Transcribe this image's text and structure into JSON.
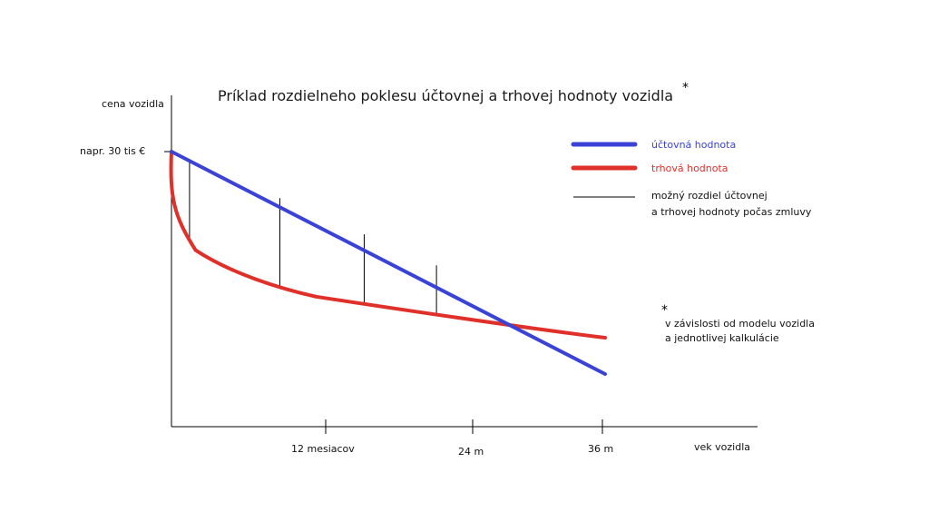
{
  "title": "Príklad rozdielneho poklesu účtovnej a trhovej hodnoty vozidla",
  "title_star": "*",
  "y_axis_label": "cena vozidla",
  "y_tick_label": "napr. 30 tis €",
  "x_axis_label": "vek vozidla",
  "x_ticks": [
    "12 mesiacov",
    "24 m",
    "36 m"
  ],
  "legend": {
    "blue": "účtovná hodnota",
    "red": "trhová hodnota",
    "diff_line1": "možný rozdiel účtovnej",
    "diff_line2": "a trhovej hodnoty počas zmluvy"
  },
  "note": {
    "star": "*",
    "line1": "v závislosti od modelu vozidla",
    "line2": "a jednotlivej kalkulácie"
  },
  "colors": {
    "accounting": "#3a43d6",
    "market": "#e0302a",
    "axis": "#000000"
  },
  "chart_data": {
    "type": "line",
    "x_unit": "months",
    "xlim": [
      0,
      36
    ],
    "y_start": 30,
    "y_unit": "tis €",
    "series": [
      {
        "name": "účtovná hodnota",
        "x": [
          0,
          36
        ],
        "y": [
          30,
          9.6
        ]
      },
      {
        "name": "trhová hodnota",
        "x": [
          0,
          1,
          2,
          4,
          8,
          12,
          18,
          24,
          30,
          36
        ],
        "y": [
          30,
          20.9,
          19.2,
          17.5,
          15.2,
          14.1,
          12.9,
          11.7,
          10.5,
          9.6
        ]
      }
    ],
    "difference_markers_months": [
      1.5,
      9,
      16,
      22
    ]
  }
}
